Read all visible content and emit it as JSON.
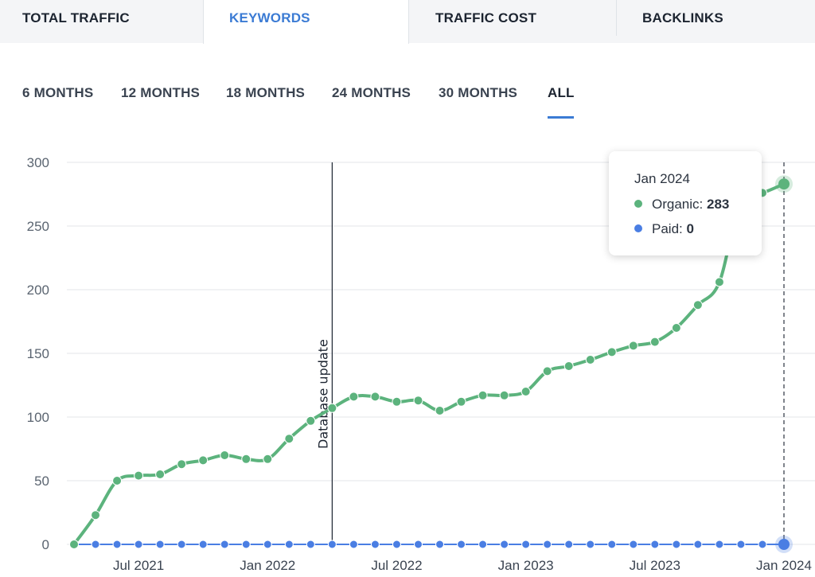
{
  "tabs": [
    {
      "label": "TOTAL TRAFFIC"
    },
    {
      "label": "KEYWORDS"
    },
    {
      "label": "TRAFFIC COST"
    },
    {
      "label": "BACKLINKS"
    }
  ],
  "ranges": [
    {
      "label": "6 MONTHS"
    },
    {
      "label": "12 MONTHS"
    },
    {
      "label": "18 MONTHS"
    },
    {
      "label": "24 MONTHS"
    },
    {
      "label": "30 MONTHS"
    },
    {
      "label": "ALL"
    }
  ],
  "colors": {
    "organic": "#5cb37d",
    "paid": "#4a7ee3",
    "accent": "#3b7bd4"
  },
  "tooltip": {
    "title": "Jan 2024",
    "organic_label": "Organic:",
    "organic_value": "283",
    "paid_label": "Paid:",
    "paid_value": "0"
  },
  "chart_data": {
    "type": "line",
    "x": [
      "2021-04",
      "2021-05",
      "2021-06",
      "2021-07",
      "2021-08",
      "2021-09",
      "2021-10",
      "2021-11",
      "2021-12",
      "2022-01",
      "2022-02",
      "2022-03",
      "2022-04",
      "2022-05",
      "2022-06",
      "2022-07",
      "2022-08",
      "2022-09",
      "2022-10",
      "2022-11",
      "2022-12",
      "2023-01",
      "2023-02",
      "2023-03",
      "2023-04",
      "2023-05",
      "2023-06",
      "2023-07",
      "2023-08",
      "2023-09",
      "2023-10",
      "2023-11",
      "2023-12",
      "2024-01"
    ],
    "x_tick_labels": [
      "Jul 2021",
      "Jan 2022",
      "Jul 2022",
      "Jan 2023",
      "Jul 2023",
      "Jan 2024"
    ],
    "x_tick_positions": [
      "2021-07",
      "2022-01",
      "2022-07",
      "2023-01",
      "2023-07",
      "2024-01"
    ],
    "series": [
      {
        "name": "Organic",
        "values": [
          0,
          23,
          50,
          54,
          55,
          63,
          66,
          70,
          67,
          67,
          83,
          97,
          107,
          116,
          116,
          112,
          113,
          105,
          112,
          117,
          117,
          120,
          136,
          140,
          145,
          151,
          156,
          159,
          170,
          188,
          206,
          272,
          276,
          283
        ]
      },
      {
        "name": "Paid",
        "values": [
          0,
          0,
          0,
          0,
          0,
          0,
          0,
          0,
          0,
          0,
          0,
          0,
          0,
          0,
          0,
          0,
          0,
          0,
          0,
          0,
          0,
          0,
          0,
          0,
          0,
          0,
          0,
          0,
          0,
          0,
          0,
          0,
          0,
          0
        ]
      }
    ],
    "ylim": [
      0,
      300
    ],
    "yticks": [
      0,
      50,
      100,
      150,
      200,
      250,
      300
    ],
    "grid": true,
    "annotation": {
      "label": "Database update",
      "x": "2022-04"
    },
    "highlight": {
      "x": "2024-01"
    }
  }
}
